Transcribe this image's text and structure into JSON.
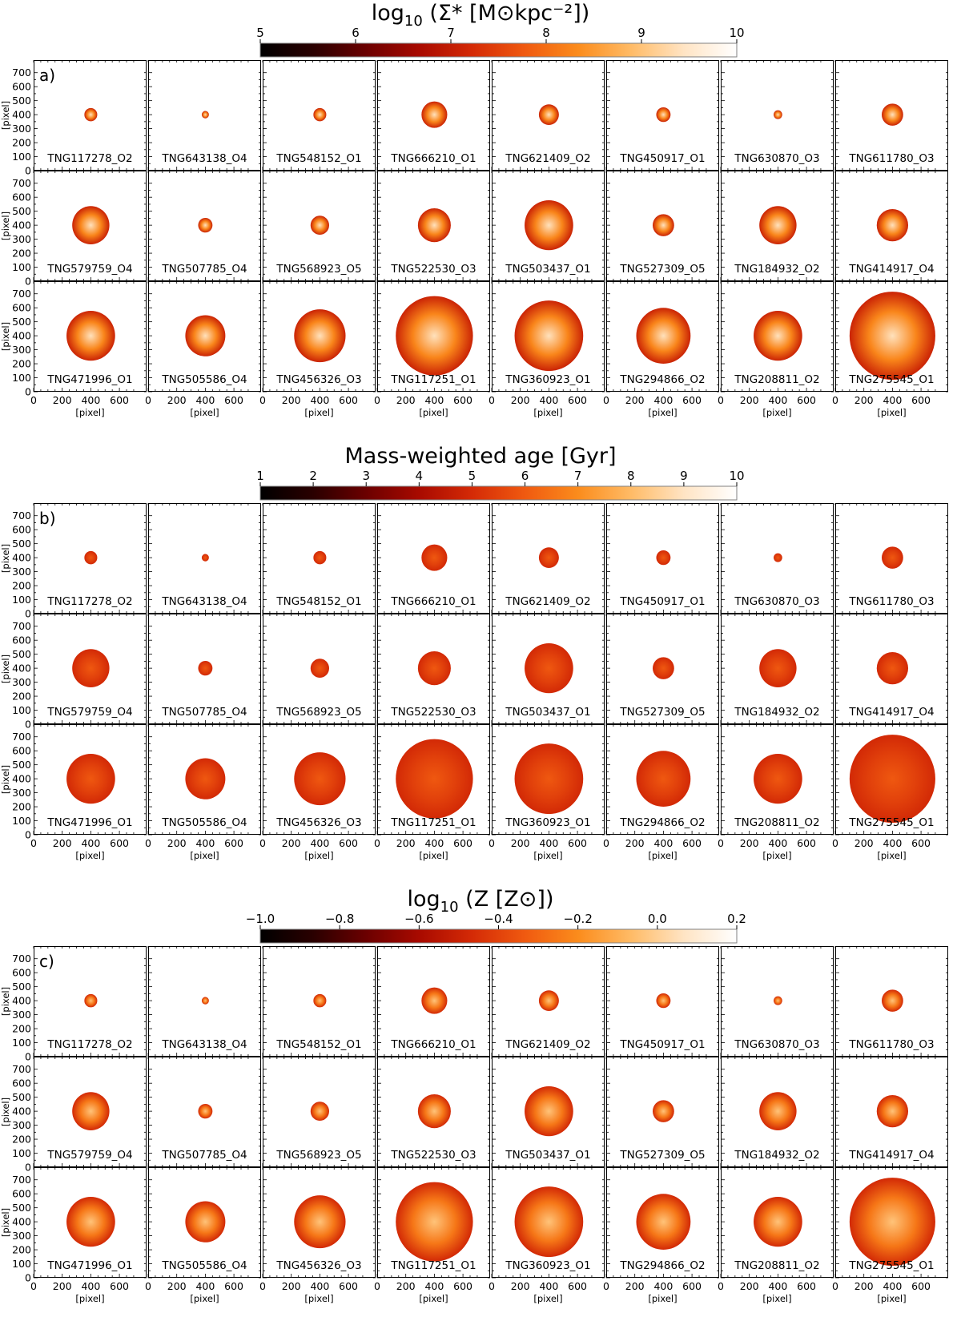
{
  "figure": {
    "colors": {
      "frame": "#000000",
      "background": "#ffffff",
      "cmap_stops": [
        "#000000",
        "#2a0000",
        "#6b0000",
        "#a80a00",
        "#d42a06",
        "#f05a10",
        "#fb8c1c",
        "#ffbb66",
        "#ffe4c4",
        "#ffffff"
      ]
    },
    "axis_tick_labels_y": [
      "0",
      "100",
      "200",
      "300",
      "400",
      "500",
      "600",
      "700"
    ],
    "axis_tick_labels_x": [
      "0",
      "200",
      "400",
      "600"
    ],
    "axis_label": "[pixel]",
    "axis_range": [
      0,
      790
    ],
    "galaxies": [
      [
        "TNG117278_O2",
        "TNG643138_O4",
        "TNG548152_O1",
        "TNG666210_O1",
        "TNG621409_O2",
        "TNG450917_O1",
        "TNG630870_O3",
        "TNG611780_O3"
      ],
      [
        "TNG579759_O4",
        "TNG507785_O4",
        "TNG568923_O5",
        "TNG522530_O3",
        "TNG503437_O1",
        "TNG527309_O5",
        "TNG184932_O2",
        "TNG414917_O4"
      ],
      [
        "TNG471996_O1",
        "TNG505586_O4",
        "TNG456326_O3",
        "TNG117251_O1",
        "TNG360923_O1",
        "TNG294866_O2",
        "TNG208811_O2",
        "TNG275545_O1"
      ]
    ],
    "galaxy_radius_data": [
      [
        45,
        25,
        45,
        90,
        70,
        50,
        30,
        75
      ],
      [
        130,
        50,
        65,
        115,
        170,
        75,
        130,
        110
      ],
      [
        170,
        140,
        180,
        270,
        240,
        190,
        170,
        300
      ]
    ],
    "panels": [
      {
        "tag": "a)",
        "title_main": "log",
        "title_sub": "10",
        "title_rest": " (Σ* [M⊙kpc⁻²])",
        "colorbar_ticks": [
          "5",
          "6",
          "7",
          "8",
          "9",
          "10"
        ],
        "color_center": 0.88,
        "color_edge": 0.42
      },
      {
        "tag": "b)",
        "title_main": "Mass-weighted age [Gyr]",
        "title_sub": "",
        "title_rest": "",
        "colorbar_ticks": [
          "1",
          "2",
          "3",
          "4",
          "5",
          "6",
          "7",
          "8",
          "9",
          "10"
        ],
        "color_center": 0.55,
        "color_edge": 0.44
      },
      {
        "tag": "c)",
        "title_main": "log",
        "title_sub": "10",
        "title_rest": " (Z [Z⊙])",
        "colorbar_ticks": [
          "−1.0",
          "−0.8",
          "−0.6",
          "−0.4",
          "−0.2",
          "0.0",
          "0.2"
        ],
        "color_center": 0.8,
        "color_edge": 0.44
      }
    ]
  },
  "chart_data": [
    {
      "type": "heatmap",
      "title": "log10 (Σ* [M⊙kpc⁻²])",
      "panel": "a)",
      "colorbar_range": [
        5,
        10
      ],
      "colorbar_ticks": [
        5,
        6,
        7,
        8,
        9,
        10
      ],
      "xlabel": "[pixel]",
      "ylabel": "[pixel]",
      "xlim": [
        0,
        790
      ],
      "ylim": [
        0,
        790
      ],
      "xticks": [
        0,
        200,
        400,
        600
      ],
      "yticks": [
        0,
        100,
        200,
        300,
        400,
        500,
        600,
        700
      ],
      "rows": 3,
      "cols": 8
    },
    {
      "type": "heatmap",
      "title": "Mass-weighted age [Gyr]",
      "panel": "b)",
      "colorbar_range": [
        1,
        10
      ],
      "colorbar_ticks": [
        1,
        2,
        3,
        4,
        5,
        6,
        7,
        8,
        9,
        10
      ],
      "xlabel": "[pixel]",
      "ylabel": "[pixel]",
      "xlim": [
        0,
        790
      ],
      "ylim": [
        0,
        790
      ],
      "xticks": [
        0,
        200,
        400,
        600
      ],
      "yticks": [
        0,
        100,
        200,
        300,
        400,
        500,
        600,
        700
      ],
      "rows": 3,
      "cols": 8
    },
    {
      "type": "heatmap",
      "title": "log10 (Z [Z⊙])",
      "panel": "c)",
      "colorbar_range": [
        -1.0,
        0.2
      ],
      "colorbar_ticks": [
        -1.0,
        -0.8,
        -0.6,
        -0.4,
        -0.2,
        0.0,
        0.2
      ],
      "xlabel": "[pixel]",
      "ylabel": "[pixel]",
      "xlim": [
        0,
        790
      ],
      "ylim": [
        0,
        790
      ],
      "xticks": [
        0,
        200,
        400,
        600
      ],
      "yticks": [
        0,
        100,
        200,
        300,
        400,
        500,
        600,
        700
      ],
      "rows": 3,
      "cols": 8
    }
  ]
}
